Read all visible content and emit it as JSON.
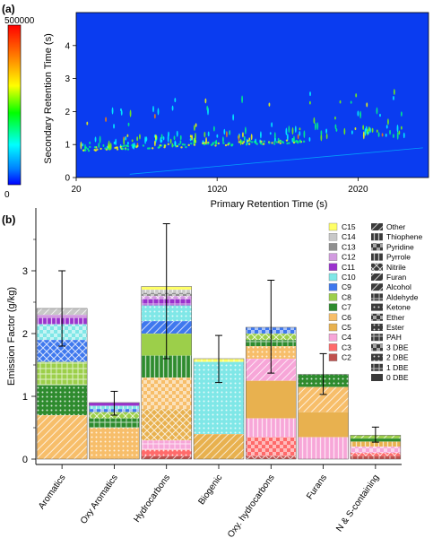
{
  "colors": {
    "gc_background": "#0a3cf0",
    "colorbar": [
      "#ff0000",
      "#ff7f00",
      "#ffff00",
      "#00ff00",
      "#00ffff",
      "#0080ff",
      "#0000ff"
    ],
    "carbon": [
      "#ffff66",
      "#c8c8c8",
      "#8f8f8f",
      "#d29be0",
      "#9a32cd",
      "#7fe7e7",
      "#3f78ee",
      "#9ccf4a",
      "#2e8b2e",
      "#f7be6a",
      "#e8b14f",
      "#f7a6d8",
      "#ff6a6a",
      "#c0504d"
    ]
  },
  "chart_data": [
    {
      "type": "heatmap",
      "panel_label": "(a)",
      "xlabel": "Primary Retention Time (s)",
      "ylabel": "Secondary Retention Time (s)",
      "xticks": [
        "20",
        "1020",
        "2020"
      ],
      "yticks": [
        "0",
        "1",
        "2",
        "3",
        "4"
      ],
      "xlim": [
        20,
        2520
      ],
      "ylim": [
        0,
        5
      ],
      "colorbar": {
        "max_label": "500000",
        "min_label": "0",
        "range": [
          0,
          500000
        ]
      }
    },
    {
      "type": "bar",
      "stacked": true,
      "panel_label": "(b)",
      "ylabel": "Emission Factor (g/kg)",
      "ylim": [
        0,
        4
      ],
      "yticks": [
        "0",
        "1",
        "2",
        "3"
      ],
      "categories": [
        "Aromatics",
        "Oxy Aromatics",
        "Hydrocarbons",
        "Biogenic",
        "Oxy. hydrocarbons",
        "Furans",
        "N & S-containing"
      ],
      "totals": [
        2.4,
        0.9,
        2.7,
        1.6,
        2.1,
        1.35,
        0.38
      ],
      "error_bars": [
        {
          "low": 1.8,
          "high": 3.0
        },
        {
          "low": 0.7,
          "high": 1.08
        },
        {
          "low": 1.6,
          "high": 3.75
        },
        {
          "low": 1.22,
          "high": 1.97
        },
        {
          "low": 1.37,
          "high": 2.85
        },
        {
          "low": 1.03,
          "high": 1.68
        },
        {
          "low": 0.27,
          "high": 0.51
        }
      ],
      "layers": [
        [
          {
            "c": "C6",
            "v": 0.7
          },
          {
            "c": "C7",
            "v": 0.48
          },
          {
            "c": "C8",
            "v": 0.37
          },
          {
            "c": "C9",
            "v": 0.35
          },
          {
            "c": "C10",
            "v": 0.25
          },
          {
            "c": "C11",
            "v": 0.1
          },
          {
            "c": "C12",
            "v": 0.05
          },
          {
            "c": "C14",
            "v": 0.1
          }
        ],
        [
          {
            "c": "C6",
            "v": 0.5
          },
          {
            "c": "C7",
            "v": 0.15
          },
          {
            "c": "C8",
            "v": 0.1
          },
          {
            "c": "C9",
            "v": 0.05
          },
          {
            "c": "C10",
            "v": 0.05
          },
          {
            "c": "C11",
            "v": 0.05
          }
        ],
        [
          {
            "c": "C2",
            "v": 0.05
          },
          {
            "c": "C3",
            "v": 0.1
          },
          {
            "c": "C4",
            "v": 0.15
          },
          {
            "c": "C5",
            "v": 0.5
          },
          {
            "c": "C6",
            "v": 0.5
          },
          {
            "c": "C7",
            "v": 0.35
          },
          {
            "c": "C8",
            "v": 0.35
          },
          {
            "c": "C9",
            "v": 0.2
          },
          {
            "c": "C10",
            "v": 0.25
          },
          {
            "c": "C11",
            "v": 0.1
          },
          {
            "c": "C12",
            "v": 0.05
          },
          {
            "c": "C13",
            "v": 0.05
          },
          {
            "c": "C14",
            "v": 0.05
          },
          {
            "c": "C15",
            "v": 0.05
          }
        ],
        [
          {
            "c": "C5",
            "v": 0.4
          },
          {
            "c": "C10",
            "v": 1.15
          },
          {
            "c": "C15",
            "v": 0.05
          }
        ],
        [
          {
            "c": "C2",
            "v": 0.05
          },
          {
            "c": "C3",
            "v": 0.3
          },
          {
            "c": "C4",
            "v": 0.3
          },
          {
            "c": "C5",
            "v": 0.6
          },
          {
            "c": "C4",
            "v": 0.35
          },
          {
            "c": "C6",
            "v": 0.2
          },
          {
            "c": "C7",
            "v": 0.1
          },
          {
            "c": "C8",
            "v": 0.1
          },
          {
            "c": "C9",
            "v": 0.1
          }
        ],
        [
          {
            "c": "C4",
            "v": 0.35
          },
          {
            "c": "C5",
            "v": 0.4
          },
          {
            "c": "C6",
            "v": 0.4
          },
          {
            "c": "C7",
            "v": 0.2
          }
        ],
        [
          {
            "c": "C2",
            "v": 0.05
          },
          {
            "c": "C3",
            "v": 0.05
          },
          {
            "c": "C4",
            "v": 0.1
          },
          {
            "c": "C5",
            "v": 0.08
          },
          {
            "c": "C7",
            "v": 0.05
          },
          {
            "c": "C8",
            "v": 0.05
          }
        ]
      ]
    }
  ],
  "legend": {
    "carbon": [
      {
        "label": "C15",
        "color": "#ffff66"
      },
      {
        "label": "C14",
        "color": "#c8c8c8"
      },
      {
        "label": "C13",
        "color": "#8f8f8f"
      },
      {
        "label": "C12",
        "color": "#d29be0"
      },
      {
        "label": "C11",
        "color": "#9a32cd"
      },
      {
        "label": "C10",
        "color": "#7fe7e7"
      },
      {
        "label": "C9",
        "color": "#3f78ee"
      },
      {
        "label": "C8",
        "color": "#9ccf4a"
      },
      {
        "label": "C7",
        "color": "#2e8b2e"
      },
      {
        "label": "C6",
        "color": "#f7be6a"
      },
      {
        "label": "C5",
        "color": "#e8b14f"
      },
      {
        "label": "C4",
        "color": "#f7a6d8"
      },
      {
        "label": "C3",
        "color": "#ff6a6a"
      },
      {
        "label": "C2",
        "color": "#c0504d"
      }
    ],
    "groups": [
      "Other",
      "Thiophene",
      "Pyridine",
      "Pyrrole",
      "Nitrile",
      "Furan",
      "Alcohol",
      "Aldehyde",
      "Ketone",
      "Ether",
      "Ester",
      "PAH",
      "3 DBE",
      "2 DBE",
      "1 DBE",
      "0 DBE"
    ]
  }
}
